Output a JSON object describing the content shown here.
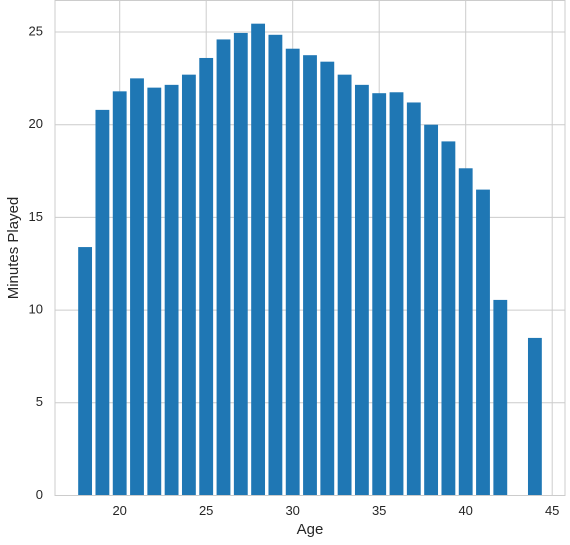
{
  "chart_data": {
    "type": "bar",
    "xlabel": "Age",
    "ylabel": "Minutes Played",
    "x": [
      18,
      19,
      20,
      21,
      22,
      23,
      24,
      25,
      26,
      27,
      28,
      29,
      30,
      31,
      32,
      33,
      34,
      35,
      36,
      37,
      38,
      39,
      40,
      41,
      42,
      44
    ],
    "values": [
      13.4,
      20.8,
      21.8,
      22.5,
      22.0,
      22.15,
      22.7,
      23.6,
      24.6,
      24.95,
      25.45,
      24.85,
      24.1,
      23.75,
      23.4,
      22.7,
      22.15,
      21.7,
      21.75,
      21.2,
      20.0,
      19.1,
      17.65,
      16.5,
      10.55,
      8.5
    ],
    "color": "#1f77b4",
    "xlim": [
      16.26,
      45.74
    ],
    "xticks": [
      20,
      25,
      30,
      35,
      40,
      45
    ],
    "ylim": [
      0,
      26.7
    ],
    "yticks": [
      0,
      5,
      10,
      15,
      20,
      25
    ],
    "grid": true
  }
}
